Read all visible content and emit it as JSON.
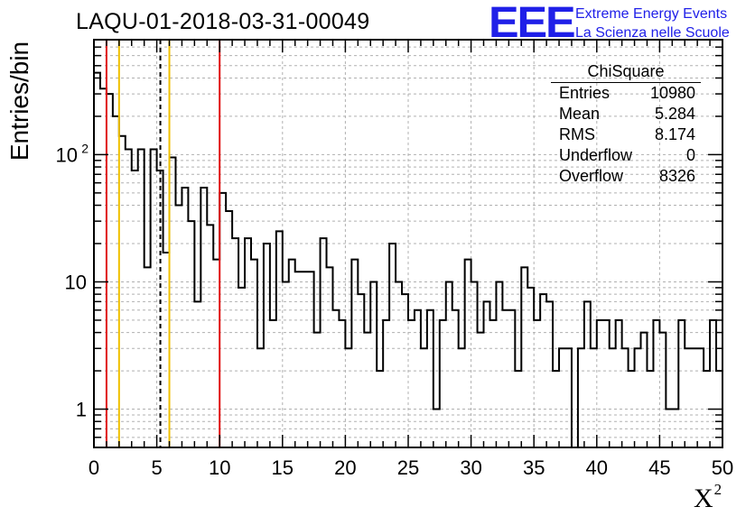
{
  "chart_data": {
    "type": "histogram",
    "title": "LAQU-01-2018-03-31-00049",
    "xlabel": "X",
    "xlabel_superscript": "2",
    "ylabel": "Entries/bin",
    "yscale": "log",
    "xlim": [
      0,
      50
    ],
    "ylim": [
      0.5,
      800
    ],
    "xticks": [
      0,
      5,
      10,
      15,
      20,
      25,
      30,
      35,
      40,
      45,
      50
    ],
    "ytick_labels": [
      {
        "value": 1,
        "label": "1"
      },
      {
        "value": 10,
        "label": "10"
      },
      {
        "value": 100,
        "label": "10",
        "sup": "2"
      }
    ],
    "bin_width": 0.5,
    "bin_counts": [
      440,
      330,
      300,
      200,
      140,
      110,
      75,
      110,
      13,
      110,
      75,
      17,
      95,
      40,
      55,
      30,
      7,
      55,
      28,
      15,
      50,
      36,
      22,
      9,
      22,
      15,
      3,
      20,
      5,
      25,
      10,
      15,
      12,
      12,
      12,
      4,
      22,
      13,
      6,
      5,
      3,
      15,
      8,
      4,
      10,
      2,
      5,
      20,
      10,
      8,
      5,
      6,
      3,
      6,
      1,
      5,
      10,
      6,
      3,
      15,
      10,
      4,
      7,
      5,
      10,
      6,
      6,
      2,
      13,
      9,
      5,
      8,
      7,
      2,
      3,
      3,
      0.5,
      3,
      7,
      3,
      5,
      5,
      3,
      5,
      3,
      2,
      3,
      4,
      2,
      5,
      4,
      1,
      1,
      5,
      3,
      3,
      3,
      2,
      5,
      2
    ],
    "vertical_lines": [
      {
        "x": 1.0,
        "color": "#e01010",
        "style": "solid"
      },
      {
        "x": 2.0,
        "color": "#f0c000",
        "style": "solid"
      },
      {
        "x": 5.284,
        "color": "#000000",
        "style": "dashed"
      },
      {
        "x": 6.0,
        "color": "#f0c000",
        "style": "solid"
      },
      {
        "x": 10.0,
        "color": "#e01010",
        "style": "solid"
      }
    ],
    "grid": true
  },
  "stats_box": {
    "title": "ChiSquare",
    "rows": [
      {
        "label": "Entries",
        "value": "10980"
      },
      {
        "label": "Mean",
        "value": "5.284"
      },
      {
        "label": "RMS",
        "value": "8.174"
      },
      {
        "label": "Underflow",
        "value": "0"
      },
      {
        "label": "Overflow",
        "value": "8326"
      }
    ]
  },
  "logo": {
    "mark": "EEE",
    "line1": "Extreme Energy Events",
    "line2": "La Scienza nelle Scuole",
    "color": "#1f1fe8"
  }
}
